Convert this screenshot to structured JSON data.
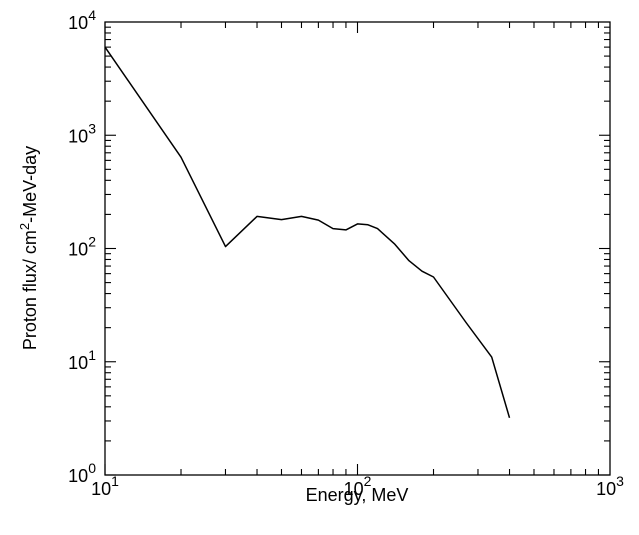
{
  "chart_data": {
    "type": "line",
    "title": "",
    "xlabel": "Energy, MeV",
    "ylabel": "Proton flux/ cm2-MeV-day",
    "ylabel_parts": {
      "before": "Proton flux/ cm",
      "sup": "2",
      "after": "-MeV-day"
    },
    "xscale": "log",
    "yscale": "log",
    "xlim": [
      10,
      1000
    ],
    "ylim": [
      1,
      10000
    ],
    "grid": false,
    "legend": "none",
    "xticks": [
      {
        "base": "10",
        "exp": "1",
        "value": 10
      },
      {
        "base": "10",
        "exp": "2",
        "value": 100
      },
      {
        "base": "10",
        "exp": "3",
        "value": 1000
      }
    ],
    "yticks": [
      {
        "base": "10",
        "exp": "0",
        "value": 1
      },
      {
        "base": "10",
        "exp": "1",
        "value": 10
      },
      {
        "base": "10",
        "exp": "2",
        "value": 100
      },
      {
        "base": "10",
        "exp": "3",
        "value": 1000
      },
      {
        "base": "10",
        "exp": "4",
        "value": 10000
      }
    ],
    "series": [
      {
        "color": "#000000",
        "x": [
          10,
          20,
          30,
          40,
          50,
          60,
          70,
          80,
          90,
          100,
          110,
          120,
          140,
          160,
          180,
          200,
          270,
          340,
          400
        ],
        "y": [
          6000,
          640,
          104,
          192,
          180,
          192,
          178,
          150,
          146,
          165,
          162,
          150,
          110,
          78,
          63,
          56,
          22,
          11,
          3.2
        ]
      }
    ]
  }
}
